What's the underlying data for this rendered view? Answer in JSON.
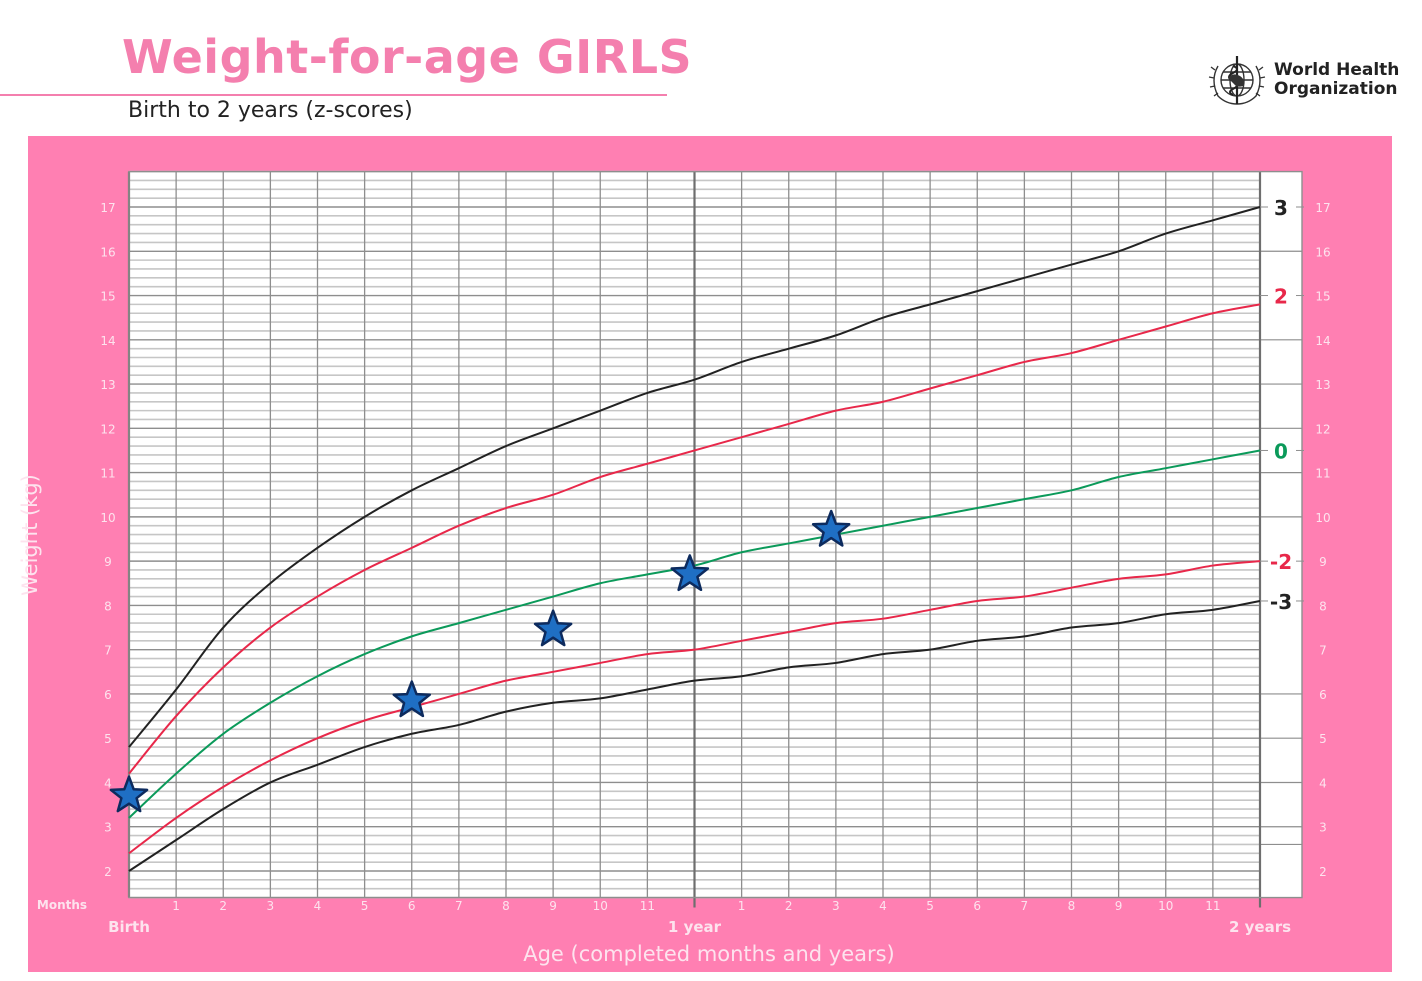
{
  "header": {
    "title": "Weight-for-age GIRLS",
    "subtitle": "Birth to 2 years (z-scores)",
    "logo_text_line1": "World Health",
    "logo_text_line2": "Organization",
    "logo_icon": "who-emblem-icon"
  },
  "colors": {
    "brand_pink": "#ff7fb2",
    "title_pink": "#f47fae",
    "z3": "#222222",
    "z2": "#e8284a",
    "z0": "#0b9a5a",
    "marker_fill": "#1f6fc4",
    "marker_stroke": "#0d2b5e"
  },
  "chart_data": {
    "type": "line",
    "title": "Weight-for-age GIRLS",
    "subtitle": "Birth to 2 years (z-scores)",
    "xlabel": "Age (completed months and years)",
    "ylabel": "Weight (kg)",
    "xlim": [
      0,
      24
    ],
    "ylim": [
      1.4,
      17.8
    ],
    "grid": true,
    "x_ticks_label": "Months",
    "x_tick_labels_year1": [
      "1",
      "2",
      "3",
      "4",
      "5",
      "6",
      "7",
      "8",
      "9",
      "10",
      "11"
    ],
    "x_tick_labels_year2": [
      "1",
      "2",
      "3",
      "4",
      "5",
      "6",
      "7",
      "8",
      "9",
      "10",
      "11"
    ],
    "x_major_labels": [
      "Birth",
      "1 year",
      "2 years"
    ],
    "y_ticks": [
      2,
      3,
      4,
      5,
      6,
      7,
      8,
      9,
      10,
      11,
      12,
      13,
      14,
      15,
      16,
      17
    ],
    "x": [
      0,
      1,
      2,
      3,
      4,
      5,
      6,
      7,
      8,
      9,
      10,
      11,
      12,
      13,
      14,
      15,
      16,
      17,
      18,
      19,
      20,
      21,
      22,
      23,
      24
    ],
    "series": [
      {
        "name": "3",
        "color": "#222222",
        "values": [
          4.8,
          6.1,
          7.5,
          8.5,
          9.3,
          10.0,
          10.6,
          11.1,
          11.6,
          12.0,
          12.4,
          12.8,
          13.1,
          13.5,
          13.8,
          14.1,
          14.5,
          14.8,
          15.1,
          15.4,
          15.7,
          16.0,
          16.4,
          16.7,
          17.0
        ]
      },
      {
        "name": "2",
        "color": "#e8284a",
        "values": [
          4.2,
          5.5,
          6.6,
          7.5,
          8.2,
          8.8,
          9.3,
          9.8,
          10.2,
          10.5,
          10.9,
          11.2,
          11.5,
          11.8,
          12.1,
          12.4,
          12.6,
          12.9,
          13.2,
          13.5,
          13.7,
          14.0,
          14.3,
          14.6,
          14.8
        ]
      },
      {
        "name": "0",
        "color": "#0b9a5a",
        "values": [
          3.2,
          4.2,
          5.1,
          5.8,
          6.4,
          6.9,
          7.3,
          7.6,
          7.9,
          8.2,
          8.5,
          8.7,
          8.9,
          9.2,
          9.4,
          9.6,
          9.8,
          10.0,
          10.2,
          10.4,
          10.6,
          10.9,
          11.1,
          11.3,
          11.5
        ]
      },
      {
        "name": "-2",
        "color": "#e8284a",
        "values": [
          2.4,
          3.2,
          3.9,
          4.5,
          5.0,
          5.4,
          5.7,
          6.0,
          6.3,
          6.5,
          6.7,
          6.9,
          7.0,
          7.2,
          7.4,
          7.6,
          7.7,
          7.9,
          8.1,
          8.2,
          8.4,
          8.6,
          8.7,
          8.9,
          9.0
        ]
      },
      {
        "name": "-3",
        "color": "#222222",
        "values": [
          2.0,
          2.7,
          3.4,
          4.0,
          4.4,
          4.8,
          5.1,
          5.3,
          5.6,
          5.8,
          5.9,
          6.1,
          6.3,
          6.4,
          6.6,
          6.7,
          6.9,
          7.0,
          7.2,
          7.3,
          7.5,
          7.6,
          7.8,
          7.9,
          8.1
        ]
      }
    ],
    "measurements": {
      "marker": "star",
      "points": [
        {
          "age_months": 0,
          "weight_kg": 3.7
        },
        {
          "age_months": 6,
          "weight_kg": 5.85
        },
        {
          "age_months": 9,
          "weight_kg": 7.45
        },
        {
          "age_months": 11.9,
          "weight_kg": 8.7
        },
        {
          "age_months": 14.9,
          "weight_kg": 9.7
        }
      ]
    },
    "zscore_labels": [
      {
        "label": "3",
        "weight_kg": 17.0
      },
      {
        "label": "2",
        "weight_kg": 15.0
      },
      {
        "label": "0",
        "weight_kg": 11.5
      },
      {
        "label": "-2",
        "weight_kg": 9.0
      },
      {
        "label": "-3",
        "weight_kg": 8.1
      }
    ]
  }
}
